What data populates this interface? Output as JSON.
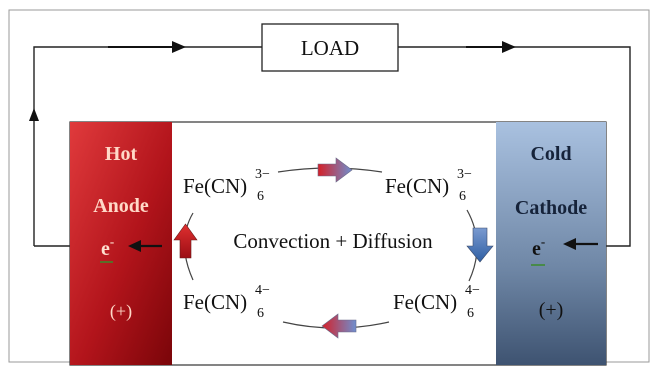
{
  "load": {
    "label": "LOAD"
  },
  "anode": {
    "line1": "Hot",
    "line2": "Anode",
    "electron": "e",
    "electron_sup": "-",
    "sign": "(+)"
  },
  "cathode": {
    "line1": "Cold",
    "line2": "Cathode",
    "electron": "e",
    "electron_sup": "-",
    "sign": "(+)"
  },
  "species": {
    "top_left": {
      "base": "Fe(CN)",
      "sup": "3−",
      "sub": "6"
    },
    "top_right": {
      "base": "Fe(CN)",
      "sup": "3−",
      "sub": "6"
    },
    "bottom_left": {
      "base": "Fe(CN)",
      "sup": "4−",
      "sub": "6"
    },
    "bottom_right": {
      "base": "Fe(CN)",
      "sup": "4−",
      "sub": "6"
    }
  },
  "center_label": "Convection + Diffusion",
  "colors": {
    "anode_dark": "#8f0a10",
    "anode_light": "#e83a3a",
    "cathode_light": "#a6bedc",
    "cathode_dark": "#46607f",
    "arrow_red": "#d42028",
    "arrow_blue": "#3f6fb0",
    "line": "#222222"
  }
}
